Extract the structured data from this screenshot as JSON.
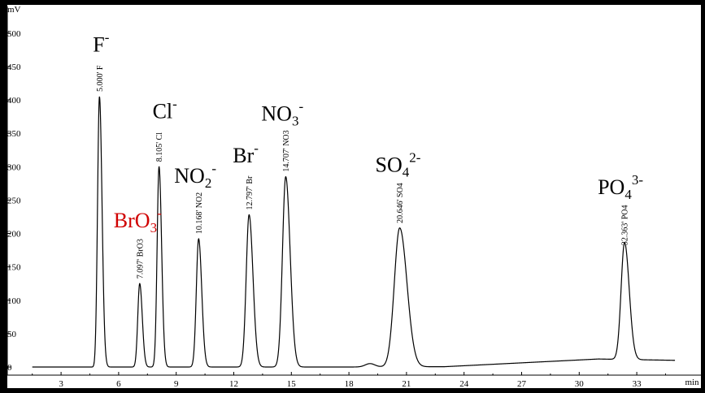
{
  "chart_data": {
    "type": "line",
    "ylabel": "mV",
    "xlabel": "min",
    "xlim": [
      1.5,
      35
    ],
    "ylim": [
      0,
      520
    ],
    "x_ticks": [
      3,
      6,
      9,
      12,
      15,
      18,
      21,
      24,
      27,
      30,
      33
    ],
    "y_ticks": [
      0,
      50,
      100,
      150,
      200,
      250,
      300,
      350,
      400,
      450,
      500
    ],
    "peaks": [
      {
        "time": 5.0,
        "height": 405,
        "width": 0.1,
        "label": "5.000'  F",
        "ion": "F",
        "sub": "",
        "sup": "-"
      },
      {
        "time": 7.097,
        "height": 125,
        "width": 0.1,
        "label": "7.097'  BrO3",
        "ion": "BrO",
        "sub": "3",
        "sup": "-"
      },
      {
        "time": 8.105,
        "height": 300,
        "width": 0.1,
        "label": "8.105'  Cl",
        "ion": "Cl",
        "sub": "",
        "sup": "-"
      },
      {
        "time": 10.168,
        "height": 192,
        "width": 0.12,
        "label": "10.168'  NO2",
        "ion": "NO",
        "sub": "2",
        "sup": "-"
      },
      {
        "time": 12.797,
        "height": 228,
        "width": 0.15,
        "label": "12.797'  Br",
        "ion": "Br",
        "sub": "",
        "sup": "-"
      },
      {
        "time": 14.707,
        "height": 285,
        "width": 0.17,
        "label": "14.707'  NO3",
        "ion": "NO",
        "sub": "3",
        "sup": "-"
      },
      {
        "time": 20.646,
        "height": 208,
        "width": 0.28,
        "label": "20.646'  SO4",
        "ion": "SO",
        "sub": "4",
        "sup": "2-"
      },
      {
        "time": 32.363,
        "height": 175,
        "width": 0.18,
        "label": "32.363'  PO4",
        "ion": "PO",
        "sub": "4",
        "sup": "3-"
      }
    ],
    "minor_bumps": [
      {
        "time": 19.1,
        "height": 5,
        "width": 0.25
      },
      {
        "time": 4.8,
        "height": -3,
        "width": 0.08
      }
    ],
    "baseline": [
      {
        "x": 1.5,
        "y": 0
      },
      {
        "x": 18.0,
        "y": 0
      },
      {
        "x": 23.0,
        "y": 0.5
      },
      {
        "x": 31.0,
        "y": 12
      },
      {
        "x": 35.0,
        "y": 10
      }
    ],
    "colors": {
      "trace": "#000000",
      "axis": "#000000",
      "background": "#ffffff",
      "frame": "#000000",
      "bro3_label": "#d00000"
    }
  }
}
